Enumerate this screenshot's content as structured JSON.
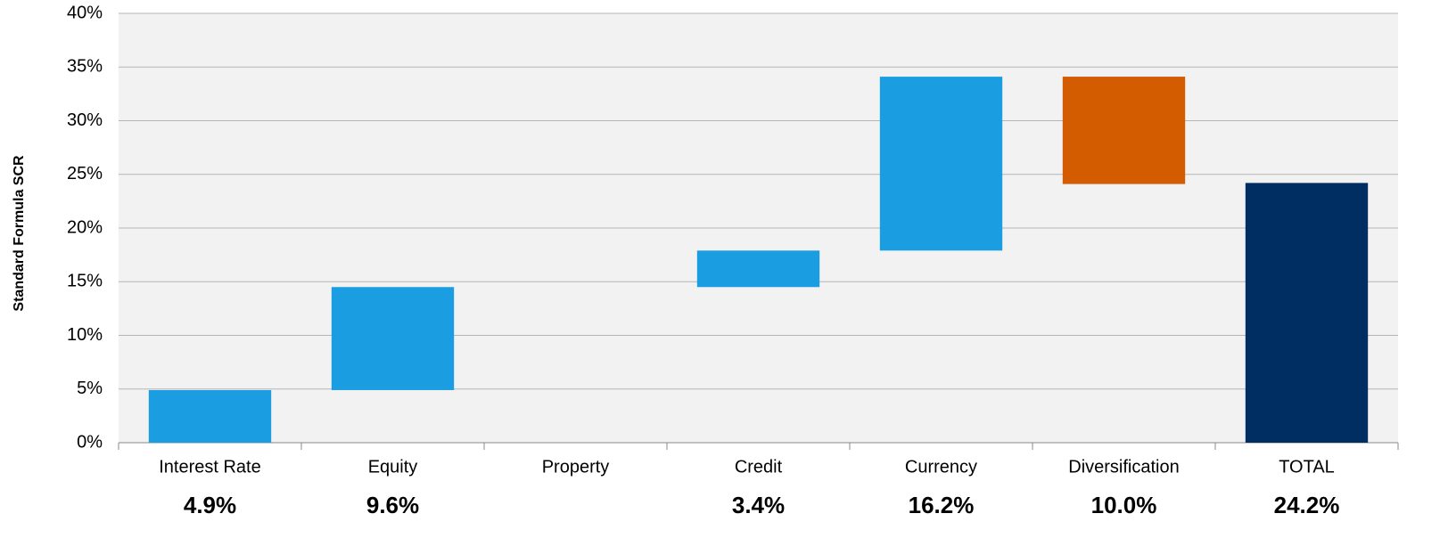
{
  "chart_data": {
    "type": "waterfall",
    "y_label": "Standard Formula SCR",
    "categories": [
      "Interest Rate",
      "Equity",
      "Property",
      "Credit",
      "Currency",
      "Diversification",
      "TOTAL"
    ],
    "values": [
      4.9,
      9.6,
      0,
      3.4,
      16.2,
      -10.0,
      24.2
    ],
    "value_labels": [
      "4.9%",
      "9.6%",
      null,
      "3.4%",
      "16.2%",
      "10.0%",
      "24.2%"
    ],
    "increase_color": "#1a9de1",
    "decrease_color": "#d35b00",
    "total_color": "#002d62",
    "ylim": [
      0,
      40
    ],
    "yticks": [
      {
        "value": 0,
        "label": "0%"
      },
      {
        "value": 5,
        "label": "5%"
      },
      {
        "value": 10,
        "label": "10%"
      },
      {
        "value": 15,
        "label": "15%"
      },
      {
        "value": 20,
        "label": "20%"
      },
      {
        "value": 25,
        "label": "25%"
      },
      {
        "value": 30,
        "label": "30%"
      },
      {
        "value": 35,
        "label": "35%"
      },
      {
        "value": 40,
        "label": "40%"
      }
    ],
    "grid": true
  }
}
